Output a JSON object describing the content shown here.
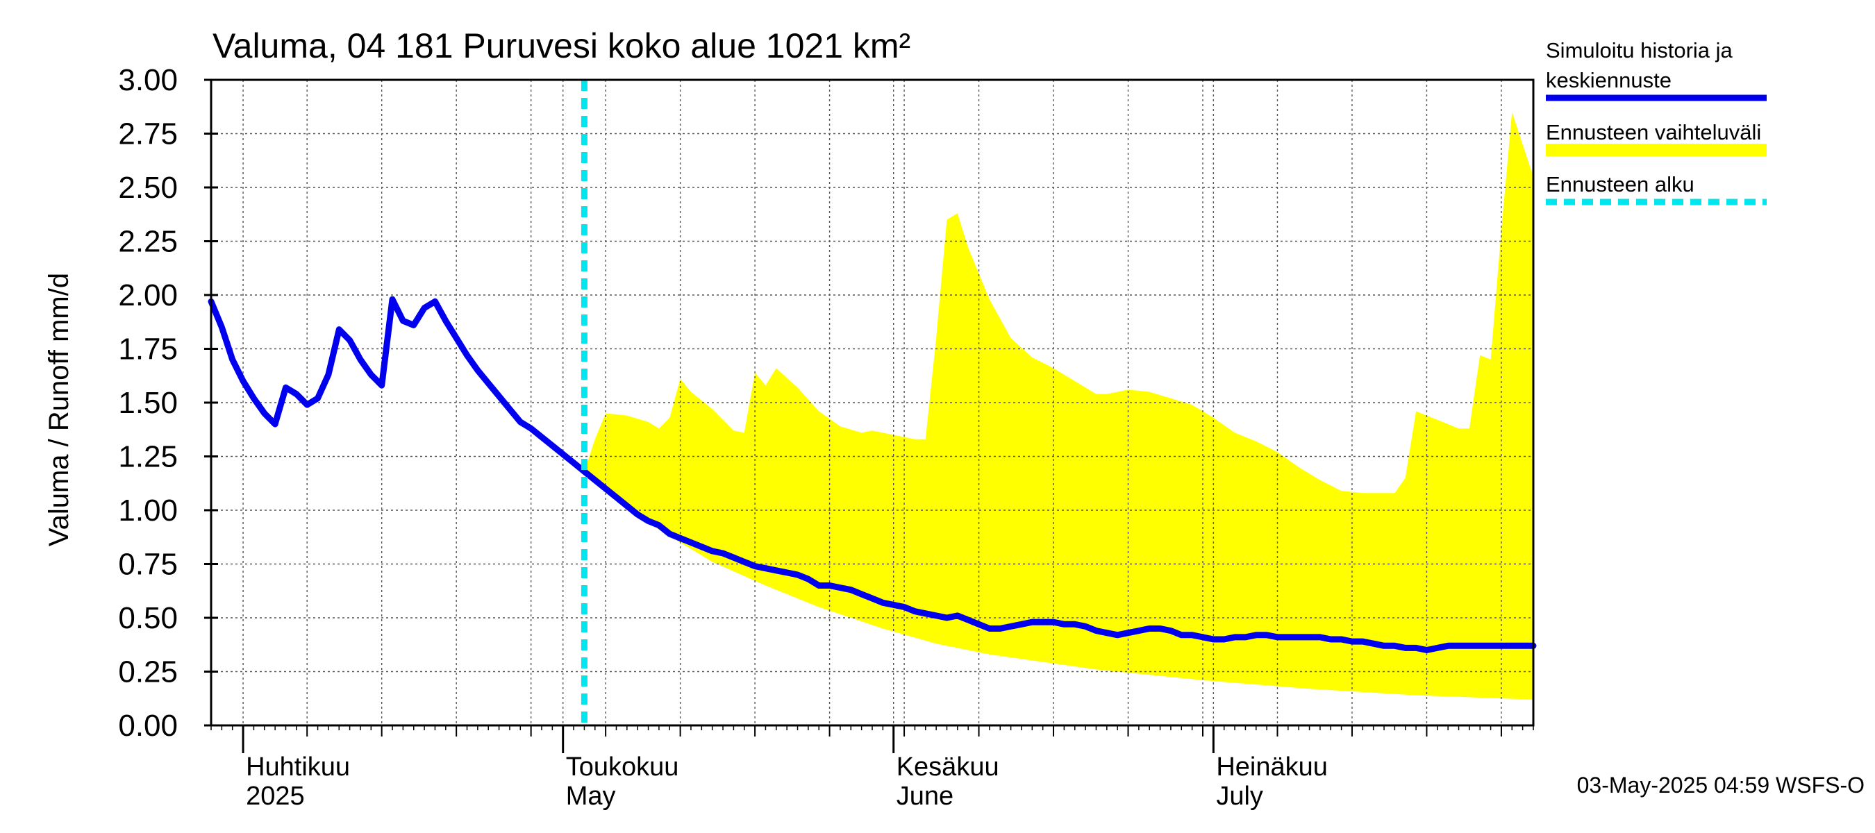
{
  "chart_data": {
    "type": "line",
    "title": "Valuma, 04 181 Puruvesi koko alue 1021 km²",
    "ylabel": "Valuma / Runoff    mm/d",
    "ylim": [
      0,
      3
    ],
    "xlim": [
      "2025-03-29",
      "2025-07-31"
    ],
    "yticks": [
      "0.00",
      "0.25",
      "0.50",
      "0.75",
      "1.00",
      "1.25",
      "1.50",
      "1.75",
      "2.00",
      "2.25",
      "2.50",
      "2.75",
      "3.00"
    ],
    "month_labels": [
      {
        "fi": "Huhtikuu",
        "en": "2025"
      },
      {
        "fi": "Toukokuu",
        "en": "May"
      },
      {
        "fi": "Kesäkuu",
        "en": "June"
      },
      {
        "fi": "Heinäkuu",
        "en": "July"
      }
    ],
    "month_starts": [
      "2025-04-01",
      "2025-05-01",
      "2025-06-01",
      "2025-07-01"
    ],
    "week_lines": [
      "2025-04-07",
      "2025-04-14",
      "2025-04-21",
      "2025-04-28",
      "2025-05-05",
      "2025-05-12",
      "2025-05-19",
      "2025-05-26",
      "2025-06-02",
      "2025-06-09",
      "2025-06-16",
      "2025-06-23",
      "2025-06-30",
      "2025-07-07",
      "2025-07-14",
      "2025-07-21",
      "2025-07-28"
    ],
    "forecast_start": "2025-05-03",
    "grid": true,
    "legend_position": "right",
    "footer": "03-May-2025 04:59 WSFS-O",
    "series": [
      {
        "name": "Simuloitu historia ja keskiennuste",
        "color": "#0000ee",
        "points": [
          [
            "2025-03-29",
            1.97
          ],
          [
            "2025-03-30",
            1.85
          ],
          [
            "2025-03-31",
            1.7
          ],
          [
            "2025-04-01",
            1.6
          ],
          [
            "2025-04-02",
            1.52
          ],
          [
            "2025-04-03",
            1.45
          ],
          [
            "2025-04-04",
            1.4
          ],
          [
            "2025-04-05",
            1.57
          ],
          [
            "2025-04-06",
            1.54
          ],
          [
            "2025-04-07",
            1.49
          ],
          [
            "2025-04-08",
            1.52
          ],
          [
            "2025-04-09",
            1.63
          ],
          [
            "2025-04-10",
            1.84
          ],
          [
            "2025-04-11",
            1.79
          ],
          [
            "2025-04-12",
            1.7
          ],
          [
            "2025-04-13",
            1.63
          ],
          [
            "2025-04-14",
            1.58
          ],
          [
            "2025-04-15",
            1.98
          ],
          [
            "2025-04-16",
            1.88
          ],
          [
            "2025-04-17",
            1.86
          ],
          [
            "2025-04-18",
            1.94
          ],
          [
            "2025-04-19",
            1.97
          ],
          [
            "2025-04-20",
            1.88
          ],
          [
            "2025-04-21",
            1.8
          ],
          [
            "2025-04-22",
            1.72
          ],
          [
            "2025-04-23",
            1.65
          ],
          [
            "2025-04-24",
            1.59
          ],
          [
            "2025-04-25",
            1.53
          ],
          [
            "2025-04-26",
            1.47
          ],
          [
            "2025-04-27",
            1.41
          ],
          [
            "2025-04-28",
            1.38
          ],
          [
            "2025-04-29",
            1.34
          ],
          [
            "2025-04-30",
            1.3
          ],
          [
            "2025-05-01",
            1.26
          ],
          [
            "2025-05-02",
            1.22
          ],
          [
            "2025-05-03",
            1.18
          ],
          [
            "2025-05-04",
            1.14
          ],
          [
            "2025-05-05",
            1.1
          ],
          [
            "2025-05-06",
            1.06
          ],
          [
            "2025-05-07",
            1.02
          ],
          [
            "2025-05-08",
            0.98
          ],
          [
            "2025-05-09",
            0.95
          ],
          [
            "2025-05-10",
            0.93
          ],
          [
            "2025-05-11",
            0.89
          ],
          [
            "2025-05-12",
            0.87
          ],
          [
            "2025-05-13",
            0.85
          ],
          [
            "2025-05-14",
            0.83
          ],
          [
            "2025-05-15",
            0.81
          ],
          [
            "2025-05-16",
            0.8
          ],
          [
            "2025-05-17",
            0.78
          ],
          [
            "2025-05-18",
            0.76
          ],
          [
            "2025-05-19",
            0.74
          ],
          [
            "2025-05-20",
            0.73
          ],
          [
            "2025-05-21",
            0.72
          ],
          [
            "2025-05-22",
            0.71
          ],
          [
            "2025-05-23",
            0.7
          ],
          [
            "2025-05-24",
            0.68
          ],
          [
            "2025-05-25",
            0.65
          ],
          [
            "2025-05-26",
            0.65
          ],
          [
            "2025-05-27",
            0.64
          ],
          [
            "2025-05-28",
            0.63
          ],
          [
            "2025-05-29",
            0.61
          ],
          [
            "2025-05-30",
            0.59
          ],
          [
            "2025-05-31",
            0.57
          ],
          [
            "2025-06-01",
            0.56
          ],
          [
            "2025-06-02",
            0.55
          ],
          [
            "2025-06-03",
            0.53
          ],
          [
            "2025-06-04",
            0.52
          ],
          [
            "2025-06-05",
            0.51
          ],
          [
            "2025-06-06",
            0.5
          ],
          [
            "2025-06-07",
            0.51
          ],
          [
            "2025-06-08",
            0.49
          ],
          [
            "2025-06-09",
            0.47
          ],
          [
            "2025-06-10",
            0.45
          ],
          [
            "2025-06-11",
            0.45
          ],
          [
            "2025-06-12",
            0.46
          ],
          [
            "2025-06-13",
            0.47
          ],
          [
            "2025-06-14",
            0.48
          ],
          [
            "2025-06-15",
            0.48
          ],
          [
            "2025-06-16",
            0.48
          ],
          [
            "2025-06-17",
            0.47
          ],
          [
            "2025-06-18",
            0.47
          ],
          [
            "2025-06-19",
            0.46
          ],
          [
            "2025-06-20",
            0.44
          ],
          [
            "2025-06-21",
            0.43
          ],
          [
            "2025-06-22",
            0.42
          ],
          [
            "2025-06-23",
            0.43
          ],
          [
            "2025-06-24",
            0.44
          ],
          [
            "2025-06-25",
            0.45
          ],
          [
            "2025-06-26",
            0.45
          ],
          [
            "2025-06-27",
            0.44
          ],
          [
            "2025-06-28",
            0.42
          ],
          [
            "2025-06-29",
            0.42
          ],
          [
            "2025-06-30",
            0.41
          ],
          [
            "2025-07-01",
            0.4
          ],
          [
            "2025-07-02",
            0.4
          ],
          [
            "2025-07-03",
            0.41
          ],
          [
            "2025-07-04",
            0.41
          ],
          [
            "2025-07-05",
            0.42
          ],
          [
            "2025-07-06",
            0.42
          ],
          [
            "2025-07-07",
            0.41
          ],
          [
            "2025-07-08",
            0.41
          ],
          [
            "2025-07-09",
            0.41
          ],
          [
            "2025-07-10",
            0.41
          ],
          [
            "2025-07-11",
            0.41
          ],
          [
            "2025-07-12",
            0.4
          ],
          [
            "2025-07-13",
            0.4
          ],
          [
            "2025-07-14",
            0.39
          ],
          [
            "2025-07-15",
            0.39
          ],
          [
            "2025-07-16",
            0.38
          ],
          [
            "2025-07-17",
            0.37
          ],
          [
            "2025-07-18",
            0.37
          ],
          [
            "2025-07-19",
            0.36
          ],
          [
            "2025-07-20",
            0.36
          ],
          [
            "2025-07-21",
            0.35
          ],
          [
            "2025-07-22",
            0.36
          ],
          [
            "2025-07-23",
            0.37
          ],
          [
            "2025-07-31",
            0.37
          ]
        ]
      },
      {
        "name": "Ennusteen vaihteluväli",
        "color": "#ffff00",
        "upper": [
          [
            "2025-05-03",
            1.18
          ],
          [
            "2025-05-04",
            1.33
          ],
          [
            "2025-05-05",
            1.45
          ],
          [
            "2025-05-07",
            1.44
          ],
          [
            "2025-05-09",
            1.41
          ],
          [
            "2025-05-10",
            1.38
          ],
          [
            "2025-05-11",
            1.43
          ],
          [
            "2025-05-12",
            1.61
          ],
          [
            "2025-05-13",
            1.55
          ],
          [
            "2025-05-15",
            1.47
          ],
          [
            "2025-05-17",
            1.37
          ],
          [
            "2025-05-18",
            1.36
          ],
          [
            "2025-05-19",
            1.64
          ],
          [
            "2025-05-20",
            1.58
          ],
          [
            "2025-05-21",
            1.66
          ],
          [
            "2025-05-23",
            1.57
          ],
          [
            "2025-05-25",
            1.46
          ],
          [
            "2025-05-27",
            1.39
          ],
          [
            "2025-05-29",
            1.36
          ],
          [
            "2025-05-30",
            1.37
          ],
          [
            "2025-06-01",
            1.35
          ],
          [
            "2025-06-03",
            1.33
          ],
          [
            "2025-06-04",
            1.33
          ],
          [
            "2025-06-05",
            1.8
          ],
          [
            "2025-06-06",
            2.35
          ],
          [
            "2025-06-07",
            2.38
          ],
          [
            "2025-06-08",
            2.22
          ],
          [
            "2025-06-10",
            1.98
          ],
          [
            "2025-06-12",
            1.8
          ],
          [
            "2025-06-14",
            1.71
          ],
          [
            "2025-06-16",
            1.66
          ],
          [
            "2025-06-18",
            1.6
          ],
          [
            "2025-06-20",
            1.54
          ],
          [
            "2025-06-21",
            1.54
          ],
          [
            "2025-06-23",
            1.56
          ],
          [
            "2025-06-25",
            1.55
          ],
          [
            "2025-06-27",
            1.52
          ],
          [
            "2025-06-29",
            1.49
          ],
          [
            "2025-07-01",
            1.43
          ],
          [
            "2025-07-03",
            1.36
          ],
          [
            "2025-07-05",
            1.32
          ],
          [
            "2025-07-07",
            1.27
          ],
          [
            "2025-07-09",
            1.2
          ],
          [
            "2025-07-11",
            1.14
          ],
          [
            "2025-07-13",
            1.09
          ],
          [
            "2025-07-15",
            1.08
          ],
          [
            "2025-07-17",
            1.08
          ],
          [
            "2025-07-18",
            1.08
          ],
          [
            "2025-07-19",
            1.15
          ],
          [
            "2025-07-20",
            1.46
          ],
          [
            "2025-07-22",
            1.42
          ],
          [
            "2025-07-24",
            1.38
          ],
          [
            "2025-07-25",
            1.38
          ],
          [
            "2025-07-26",
            1.72
          ],
          [
            "2025-07-27",
            1.7
          ],
          [
            "2025-07-28",
            2.3
          ],
          [
            "2025-07-29",
            2.85
          ],
          [
            "2025-07-30",
            2.7
          ],
          [
            "2025-07-31",
            2.55
          ]
        ],
        "lower": [
          [
            "2025-05-03",
            1.18
          ],
          [
            "2025-05-06",
            1.05
          ],
          [
            "2025-05-10",
            0.91
          ],
          [
            "2025-05-15",
            0.76
          ],
          [
            "2025-05-20",
            0.65
          ],
          [
            "2025-05-25",
            0.55
          ],
          [
            "2025-05-31",
            0.45
          ],
          [
            "2025-06-05",
            0.38
          ],
          [
            "2025-06-10",
            0.33
          ],
          [
            "2025-06-20",
            0.26
          ],
          [
            "2025-06-30",
            0.21
          ],
          [
            "2025-07-10",
            0.17
          ],
          [
            "2025-07-20",
            0.14
          ],
          [
            "2025-07-31",
            0.12
          ]
        ]
      },
      {
        "name": "Ennusteen alku",
        "color": "#00e5ee"
      }
    ]
  }
}
